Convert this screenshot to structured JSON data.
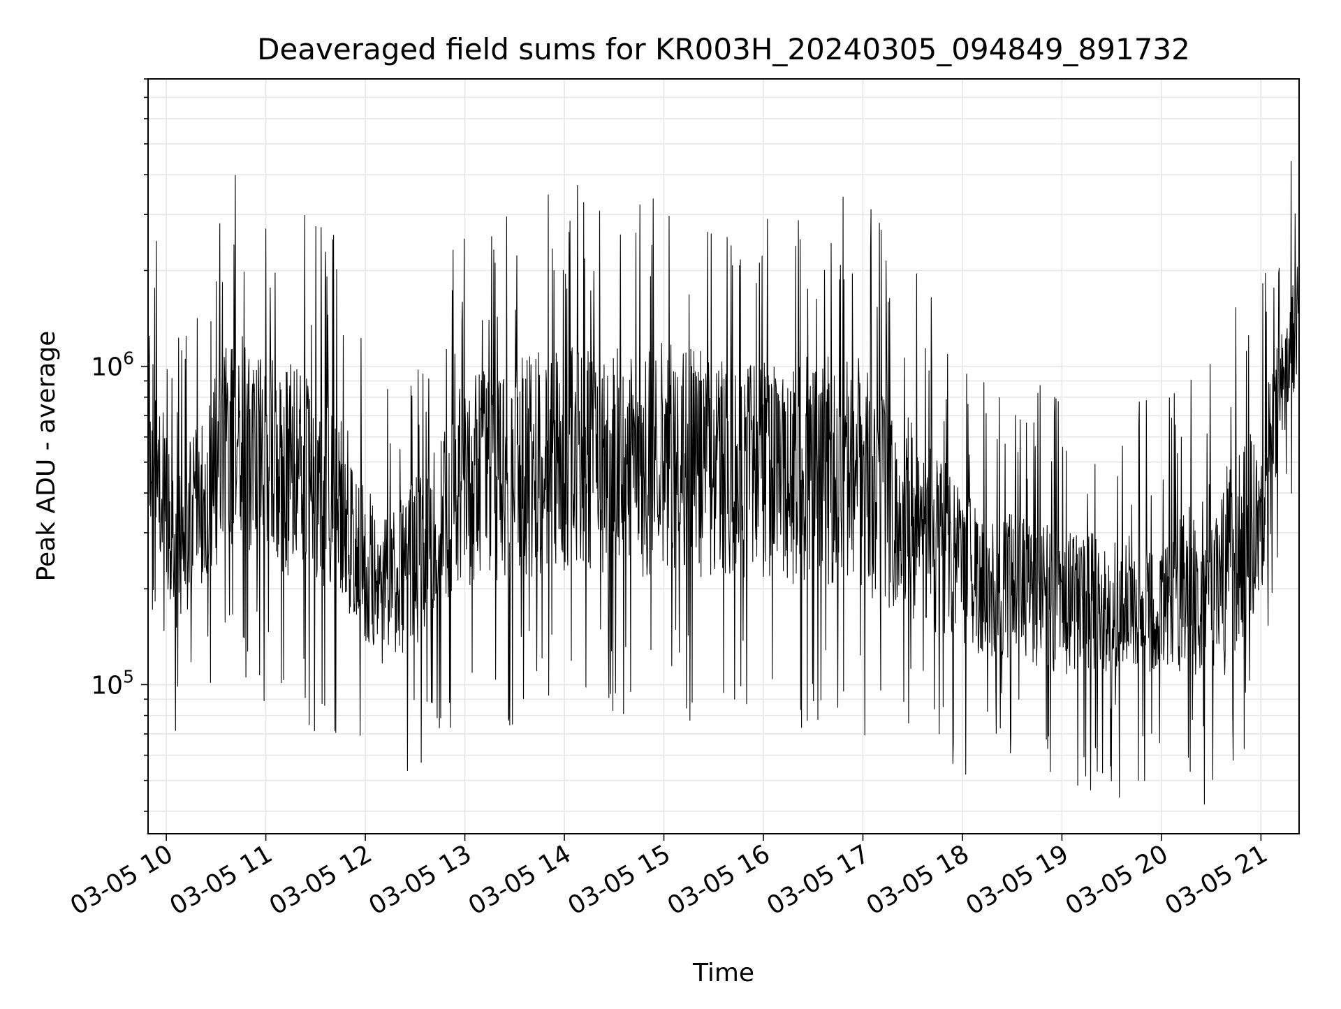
{
  "chart_data": {
    "type": "line",
    "title": "Deaveraged field sums for KR003H_20240305_094849_891732",
    "xlabel": "Time",
    "ylabel": "Peak ADU - average",
    "yscale": "log",
    "ylim": [
      34000,
      8000000
    ],
    "xlim": [
      "2024-03-05 09:49",
      "2024-03-05 21:23"
    ],
    "x_ticks": [
      "03-05 10",
      "03-05 11",
      "03-05 12",
      "03-05 13",
      "03-05 14",
      "03-05 15",
      "03-05 16",
      "03-05 17",
      "03-05 18",
      "03-05 19",
      "03-05 20",
      "03-05 21"
    ],
    "y_ticks": [
      {
        "value": 100000,
        "base": "10",
        "exp": "5"
      },
      {
        "value": 1000000,
        "base": "10",
        "exp": "6"
      }
    ],
    "grid": "major and minor",
    "line_color": "#000000",
    "envelope": {
      "description_time": [
        "2024-03-05 09:49",
        "2024-03-05 10:05",
        "2024-03-05 10:40",
        "2024-03-05 11:40",
        "2024-03-05 12:10",
        "2024-03-05 12:40",
        "2024-03-05 13:00",
        "2024-03-05 14:00",
        "2024-03-05 15:00",
        "2024-03-05 16:00",
        "2024-03-05 17:00",
        "2024-03-05 18:10",
        "2024-03-05 19:00",
        "2024-03-05 20:00",
        "2024-03-05 20:40",
        "2024-03-05 21:00",
        "2024-03-05 21:23"
      ],
      "low": [
        250000,
        110000,
        200000,
        130000,
        90000,
        110000,
        140000,
        160000,
        150000,
        150000,
        130000,
        100000,
        85000,
        90000,
        75000,
        140000,
        900000
      ],
      "high": [
        2300000,
        600000,
        1800000,
        1200000,
        400000,
        700000,
        1300000,
        1700000,
        1700000,
        1500000,
        1600000,
        450000,
        400000,
        350000,
        700000,
        1000000,
        2600000
      ]
    }
  }
}
